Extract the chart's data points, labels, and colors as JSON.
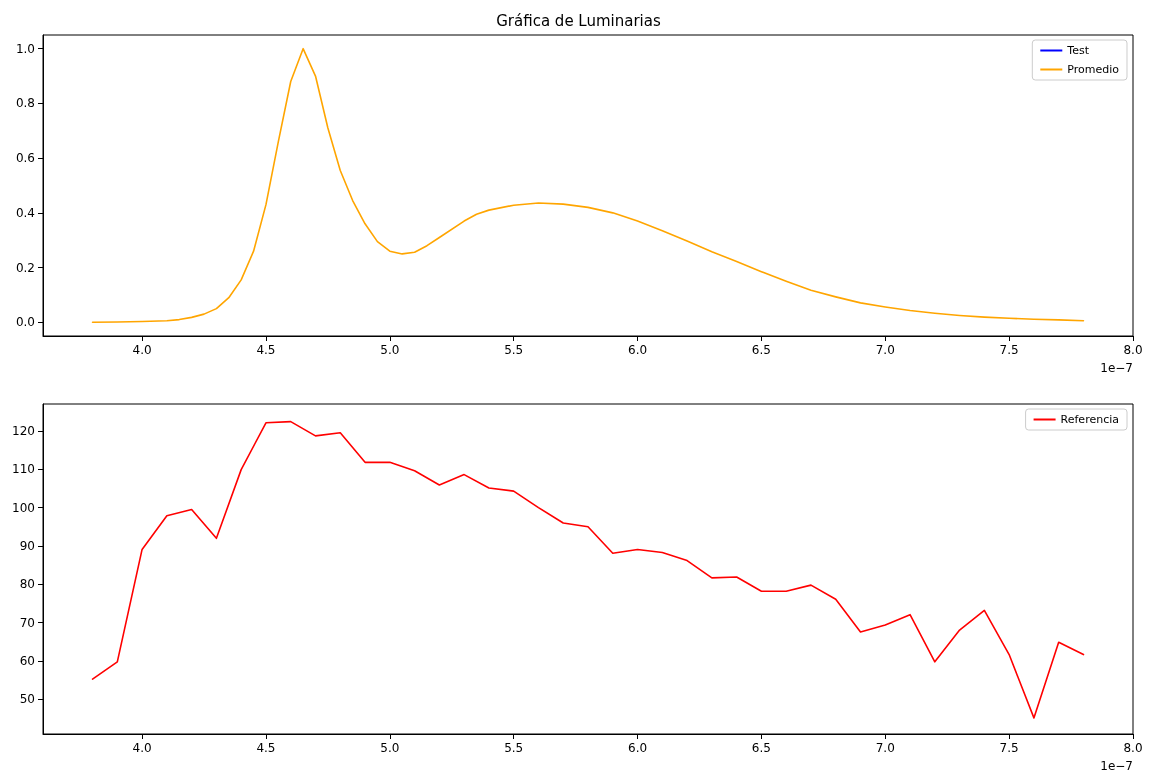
{
  "chart_data": [
    {
      "type": "line",
      "title": "Gráfica de Luminarias",
      "annotations": [
        "1e−7"
      ],
      "x": [
        3.8,
        3.9,
        4.0,
        4.1,
        4.15,
        4.2,
        4.25,
        4.3,
        4.35,
        4.4,
        4.45,
        4.5,
        4.55,
        4.6,
        4.65,
        4.7,
        4.75,
        4.8,
        4.85,
        4.9,
        4.95,
        5.0,
        5.05,
        5.1,
        5.15,
        5.2,
        5.3,
        5.35,
        5.4,
        5.5,
        5.6,
        5.7,
        5.8,
        5.9,
        6.0,
        6.1,
        6.2,
        6.3,
        6.4,
        6.5,
        6.6,
        6.7,
        6.8,
        6.9,
        7.0,
        7.1,
        7.2,
        7.3,
        7.4,
        7.5,
        7.6,
        7.7,
        7.8
      ],
      "series": [
        {
          "name": "Test",
          "color": "#0000ff",
          "values": [
            null,
            null,
            null,
            null,
            null,
            null,
            null,
            null,
            null,
            null,
            null,
            null,
            null,
            null,
            null,
            null,
            null,
            null,
            null,
            null,
            null,
            null,
            null,
            null,
            null,
            null,
            null,
            null,
            null,
            null,
            null,
            null,
            null,
            null,
            null,
            null,
            null,
            null,
            null,
            null,
            null,
            null,
            null,
            null,
            null,
            null,
            null,
            null,
            null,
            null,
            null,
            null,
            null
          ]
        },
        {
          "name": "Promedio",
          "color": "#ffa500",
          "values": [
            0.0,
            0.001,
            0.003,
            0.006,
            0.01,
            0.018,
            0.03,
            0.05,
            0.09,
            0.155,
            0.26,
            0.43,
            0.66,
            0.88,
            1.0,
            0.9,
            0.71,
            0.555,
            0.445,
            0.36,
            0.295,
            0.26,
            0.25,
            0.256,
            0.28,
            0.31,
            0.37,
            0.395,
            0.41,
            0.428,
            0.436,
            0.432,
            0.42,
            0.4,
            0.37,
            0.335,
            0.297,
            0.258,
            0.222,
            0.185,
            0.15,
            0.117,
            0.093,
            0.071,
            0.056,
            0.043,
            0.033,
            0.025,
            0.019,
            0.015,
            0.011,
            0.009,
            0.006
          ]
        }
      ],
      "xlim": [
        3.6,
        8.0
      ],
      "xticks": [
        {
          "value": 4,
          "label": "4.0"
        },
        {
          "value": 4.5,
          "label": "4.5"
        },
        {
          "value": 5,
          "label": "5.0"
        },
        {
          "value": 5.5,
          "label": "5.5"
        },
        {
          "value": 6,
          "label": "6.0"
        },
        {
          "value": 6.5,
          "label": "6.5"
        },
        {
          "value": 7,
          "label": "7.0"
        },
        {
          "value": 7.5,
          "label": "7.5"
        },
        {
          "value": 8,
          "label": "8.0"
        }
      ],
      "ylim": [
        -0.05,
        1.05
      ],
      "yticks": [
        {
          "value": 0,
          "label": "0.0"
        },
        {
          "value": 0.2,
          "label": "0.2"
        },
        {
          "value": 0.4,
          "label": "0.4"
        },
        {
          "value": 0.6,
          "label": "0.6"
        },
        {
          "value": 0.8,
          "label": "0.8"
        },
        {
          "value": 1,
          "label": "1.0"
        }
      ],
      "legend": "top right",
      "grid": false,
      "marker": "none",
      "line_style": "solid"
    },
    {
      "type": "line",
      "annotations": [
        "1e−7"
      ],
      "x": [
        3.8,
        3.9,
        4.0,
        4.1,
        4.2,
        4.3,
        4.4,
        4.5,
        4.6,
        4.7,
        4.8,
        4.9,
        5.0,
        5.1,
        5.2,
        5.3,
        5.4,
        5.5,
        5.6,
        5.7,
        5.8,
        5.9,
        6.0,
        6.1,
        6.2,
        6.3,
        6.4,
        6.5,
        6.6,
        6.7,
        6.8,
        6.9,
        7.0,
        7.1,
        7.2,
        7.3,
        7.4,
        7.5,
        7.6,
        7.7,
        7.8
      ],
      "series": [
        {
          "name": "Referencia",
          "color": "#ff0000",
          "values": [
            55.3,
            59.8,
            89.1,
            97.9,
            99.5,
            92.0,
            109.9,
            122.1,
            122.4,
            118.7,
            119.5,
            111.8,
            111.8,
            109.6,
            105.9,
            108.6,
            105.1,
            104.3,
            100.0,
            96.0,
            95.0,
            88.1,
            89.1,
            88.3,
            86.2,
            81.7,
            81.9,
            78.2,
            78.2,
            79.8,
            76.1,
            67.6,
            69.4,
            72.1,
            59.8,
            68.1,
            73.2,
            61.7,
            45.2,
            64.9,
            61.7
          ]
        }
      ],
      "xlim": [
        3.6,
        8.0
      ],
      "xticks": [
        {
          "value": 4,
          "label": "4.0"
        },
        {
          "value": 4.5,
          "label": "4.5"
        },
        {
          "value": 5,
          "label": "5.0"
        },
        {
          "value": 5.5,
          "label": "5.5"
        },
        {
          "value": 6,
          "label": "6.0"
        },
        {
          "value": 6.5,
          "label": "6.5"
        },
        {
          "value": 7,
          "label": "7.0"
        },
        {
          "value": 7.5,
          "label": "7.5"
        },
        {
          "value": 8,
          "label": "8.0"
        }
      ],
      "ylim": [
        41,
        127
      ],
      "yticks": [
        50,
        60,
        70,
        80,
        90,
        100,
        110,
        120
      ],
      "legend": "top right",
      "grid": false,
      "marker": "none",
      "line_style": "solid"
    }
  ]
}
